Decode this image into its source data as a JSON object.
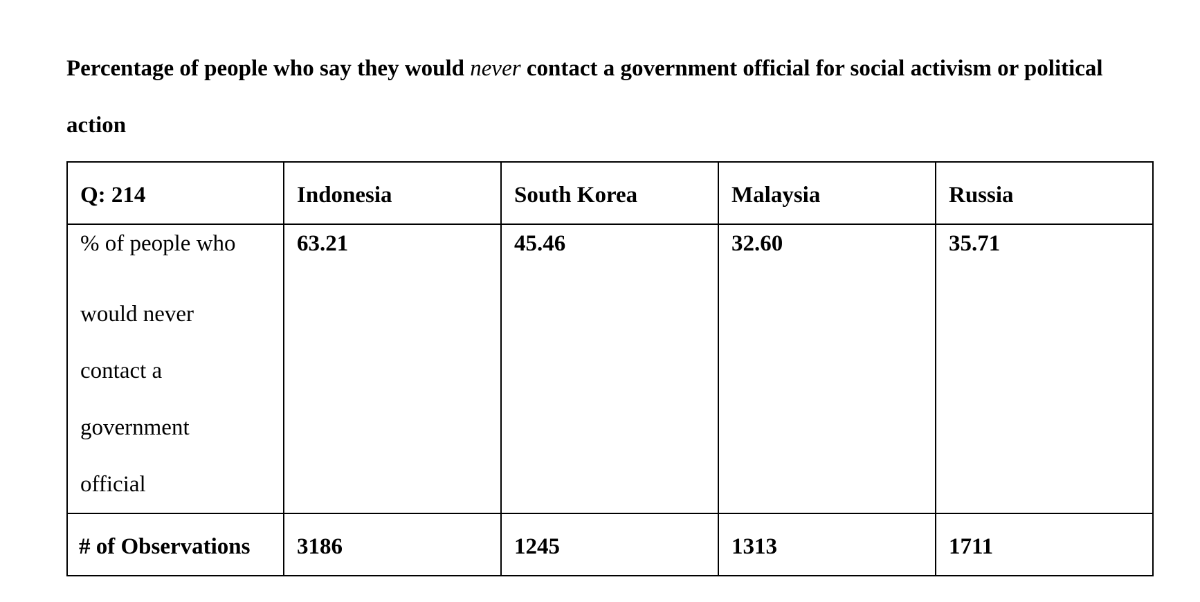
{
  "title": {
    "part1": "Percentage of people who say they would ",
    "emphasis": "never",
    "part2": " contact a government official for social activism or political action"
  },
  "table": {
    "header": [
      "Q: 214",
      "Indonesia",
      "South Korea",
      "Malaysia",
      "Russia"
    ],
    "row_percent": {
      "label_lines": [
        "% of people who",
        "would never",
        "contact a",
        "government",
        "official"
      ],
      "values": [
        "63.21",
        "45.46",
        "32.60",
        "35.71"
      ]
    },
    "row_observations": {
      "label": "# of Observations",
      "values": [
        "3186",
        "1245",
        "1313",
        "1711"
      ]
    }
  }
}
